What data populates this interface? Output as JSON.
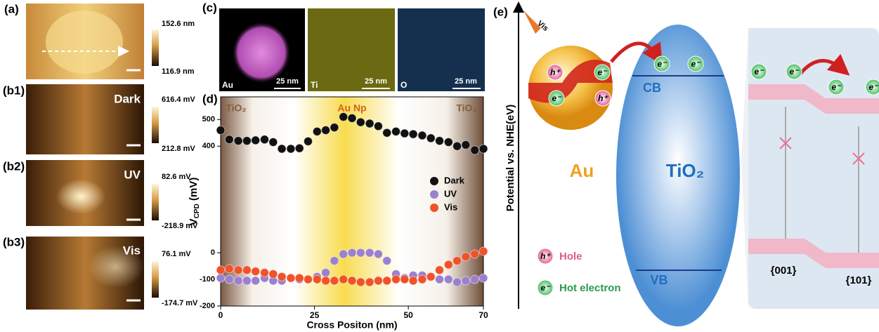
{
  "panels": {
    "a": {
      "label": "(a)",
      "cbar_max": "152.6 nm",
      "cbar_min": "116.9 nm"
    },
    "b1": {
      "label": "(b1)",
      "condition": "Dark",
      "cbar_max": "616.4 mV",
      "cbar_min": "212.8 mV"
    },
    "b2": {
      "label": "(b2)",
      "condition": "UV",
      "cbar_max": "82.6 mV",
      "cbar_min": "-218.9 mV"
    },
    "b3": {
      "label": "(b3)",
      "condition": "Vis",
      "cbar_max": "76.1 mV",
      "cbar_min": "-174.7 mV"
    },
    "c": {
      "label": "(c)",
      "maps": [
        {
          "element": "Au",
          "scale": "25 nm"
        },
        {
          "element": "Ti",
          "scale": "25 nm"
        },
        {
          "element": "O",
          "scale": "25 nm"
        }
      ]
    },
    "d": {
      "label": "(d)"
    },
    "e": {
      "label": "(e)",
      "light": "Vis",
      "y_axis": "Potential vs. NHE(eV)",
      "metal": "Au",
      "semiconductor": "TiO₂",
      "cb": "CB",
      "vb": "VB",
      "hole_symbol": "h⁺",
      "electron_symbol": "e⁻",
      "legend_hole": "Hole",
      "legend_electron": "Hot electron",
      "facet_1": "{001}",
      "facet_2": "{101}"
    }
  },
  "chart_data": {
    "type": "scatter",
    "x_label": "Cross Positon (nm)",
    "y_label": "V",
    "y_label_sub": "CPD",
    "y_label_unit": " (mV)",
    "annotations": [
      "TiO₂",
      "Au Np",
      "TiO₂"
    ],
    "x": [
      0,
      2.3,
      4.7,
      7,
      9.3,
      11.7,
      14,
      16.3,
      18.7,
      21,
      23.3,
      25.7,
      28,
      30.3,
      32.7,
      35,
      37.3,
      39.7,
      42,
      44.3,
      46.7,
      49,
      51.3,
      53.7,
      56,
      58.3,
      60.7,
      63,
      65.3,
      67.7,
      70
    ],
    "series": [
      {
        "name": "Dark",
        "color": "#111111",
        "values": [
          460,
          425,
          420,
          420,
          422,
          425,
          415,
          390,
          390,
          392,
          418,
          455,
          460,
          470,
          510,
          505,
          490,
          485,
          475,
          450,
          455,
          448,
          445,
          440,
          430,
          420,
          415,
          400,
          405,
          385,
          390
        ]
      },
      {
        "name": "UV",
        "color": "#9b80d0",
        "values": [
          -95,
          -100,
          -105,
          -105,
          -105,
          -95,
          -105,
          -105,
          -95,
          -100,
          -100,
          -90,
          -75,
          -30,
          -5,
          0,
          0,
          0,
          -5,
          -30,
          -80,
          -95,
          -85,
          -85,
          -90,
          -100,
          -100,
          -110,
          -105,
          -100,
          -95
        ]
      },
      {
        "name": "Vis",
        "color": "#f0522a",
        "values": [
          -65,
          -60,
          -65,
          -65,
          -70,
          -75,
          -80,
          -90,
          -95,
          -95,
          -100,
          -100,
          -105,
          -105,
          -100,
          -105,
          -110,
          -110,
          -105,
          -105,
          -100,
          -100,
          -105,
          -100,
          -90,
          -65,
          -45,
          -30,
          -15,
          -5,
          5
        ]
      }
    ],
    "xlim": [
      0,
      70
    ],
    "xticks": [
      0,
      25,
      50,
      70
    ],
    "ylim": [
      -200,
      585
    ],
    "yticks": [
      -200,
      -100,
      0,
      400,
      500
    ],
    "legend_position": "right"
  }
}
